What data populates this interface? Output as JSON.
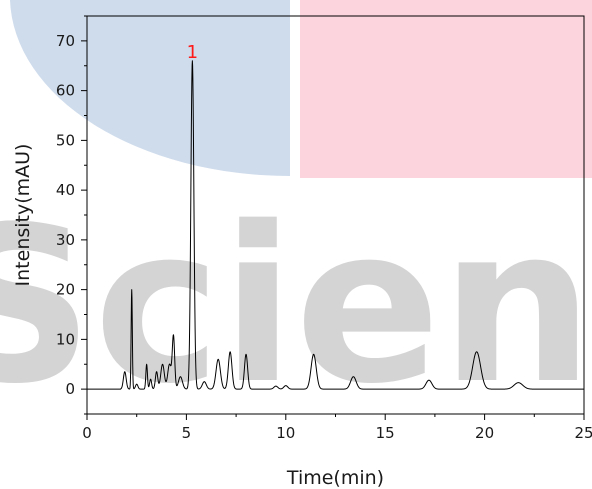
{
  "colors": {
    "trace": "#000000",
    "peak_label": "#ff1a1a",
    "watermark_blue": "#cfdcec",
    "watermark_pink": "#fcd4de",
    "watermark_gray": "#cdcdcd"
  },
  "watermark": {
    "text": "Scienc"
  },
  "chart_data": {
    "type": "line",
    "xlabel": "Time(min)",
    "ylabel": "Intensity(mAU)",
    "xlim": [
      0,
      25
    ],
    "ylim": [
      -5,
      75
    ],
    "xticks": [
      0,
      5,
      10,
      15,
      20,
      25
    ],
    "yticks": [
      0,
      10,
      20,
      30,
      40,
      50,
      60,
      70
    ],
    "grid": false,
    "baseline": 0,
    "peaks": [
      {
        "t": 1.9,
        "h": 3.5,
        "w": 0.07
      },
      {
        "t": 2.25,
        "h": 20,
        "w": 0.03
      },
      {
        "t": 2.5,
        "h": 1.0,
        "w": 0.06
      },
      {
        "t": 3.0,
        "h": 5.0,
        "w": 0.04
      },
      {
        "t": 3.2,
        "h": 2.0,
        "w": 0.05
      },
      {
        "t": 3.5,
        "h": 3.5,
        "w": 0.06
      },
      {
        "t": 3.8,
        "h": 5.0,
        "w": 0.09
      },
      {
        "t": 4.15,
        "h": 5.0,
        "w": 0.09
      },
      {
        "t": 4.35,
        "h": 10.5,
        "w": 0.06
      },
      {
        "t": 4.7,
        "h": 2.5,
        "w": 0.1
      },
      {
        "t": 5.3,
        "h": 66,
        "w": 0.075
      },
      {
        "t": 5.9,
        "h": 1.5,
        "w": 0.1
      },
      {
        "t": 6.6,
        "h": 6.0,
        "w": 0.11
      },
      {
        "t": 7.2,
        "h": 7.5,
        "w": 0.09
      },
      {
        "t": 8.0,
        "h": 7.0,
        "w": 0.08
      },
      {
        "t": 9.5,
        "h": 0.6,
        "w": 0.1
      },
      {
        "t": 10.0,
        "h": 0.7,
        "w": 0.1
      },
      {
        "t": 11.4,
        "h": 7.0,
        "w": 0.13
      },
      {
        "t": 13.4,
        "h": 2.5,
        "w": 0.14
      },
      {
        "t": 17.2,
        "h": 1.8,
        "w": 0.15
      },
      {
        "t": 19.6,
        "h": 7.5,
        "w": 0.2
      },
      {
        "t": 21.7,
        "h": 1.3,
        "w": 0.22
      }
    ],
    "annotations": [
      {
        "text": "1",
        "x": 5.3,
        "y": 66
      }
    ]
  }
}
